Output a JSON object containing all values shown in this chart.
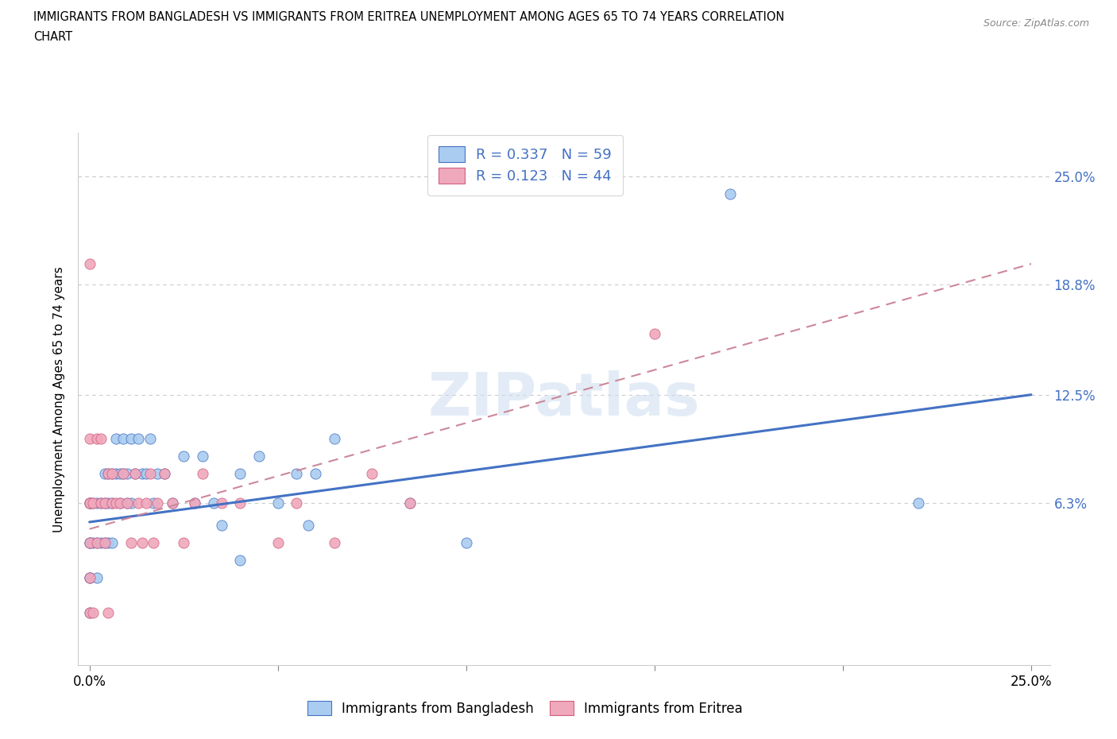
{
  "title_line1": "IMMIGRANTS FROM BANGLADESH VS IMMIGRANTS FROM ERITREA UNEMPLOYMENT AMONG AGES 65 TO 74 YEARS CORRELATION",
  "title_line2": "CHART",
  "source": "Source: ZipAtlas.com",
  "ylabel": "Unemployment Among Ages 65 to 74 years",
  "xlim": [
    -0.003,
    0.255
  ],
  "ylim": [
    -0.03,
    0.275
  ],
  "x_ticks": [
    0.0,
    0.05,
    0.1,
    0.15,
    0.2,
    0.25
  ],
  "x_tick_labels_show": [
    "0.0%",
    "",
    "",
    "",
    "",
    "25.0%"
  ],
  "y_ticks": [
    0.063,
    0.125,
    0.188,
    0.25
  ],
  "y_tick_labels": [
    "6.3%",
    "12.5%",
    "18.8%",
    "25.0%"
  ],
  "watermark": "ZIPatlas",
  "legend_r1": "0.337",
  "legend_n1": "59",
  "legend_r2": "0.123",
  "legend_n2": "44",
  "color_bangladesh": "#aaccf0",
  "color_eritrea": "#f0a8bc",
  "border_bangladesh": "#4472c4",
  "border_eritrea": "#d06080",
  "trendline_bangladesh_x0": 0.0,
  "trendline_bangladesh_y0": 0.052,
  "trendline_bangladesh_x1": 0.25,
  "trendline_bangladesh_y1": 0.125,
  "trendline_eritrea_x0": 0.0,
  "trendline_eritrea_y0": 0.048,
  "trendline_eritrea_x1": 0.25,
  "trendline_eritrea_y1": 0.2,
  "bangladesh_x": [
    0.0,
    0.0,
    0.0,
    0.0,
    0.0,
    0.0,
    0.0,
    0.001,
    0.001,
    0.002,
    0.002,
    0.002,
    0.003,
    0.003,
    0.004,
    0.004,
    0.004,
    0.005,
    0.005,
    0.005,
    0.006,
    0.006,
    0.006,
    0.007,
    0.007,
    0.008,
    0.008,
    0.009,
    0.009,
    0.01,
    0.01,
    0.011,
    0.011,
    0.012,
    0.013,
    0.014,
    0.015,
    0.016,
    0.017,
    0.018,
    0.02,
    0.022,
    0.025,
    0.028,
    0.03,
    0.033,
    0.035,
    0.04,
    0.04,
    0.045,
    0.05,
    0.055,
    0.058,
    0.06,
    0.065,
    0.085,
    0.1,
    0.17,
    0.22
  ],
  "bangladesh_y": [
    0.063,
    0.04,
    0.02,
    0.0,
    0.063,
    0.04,
    0.02,
    0.063,
    0.04,
    0.063,
    0.04,
    0.02,
    0.063,
    0.04,
    0.08,
    0.063,
    0.04,
    0.08,
    0.063,
    0.04,
    0.08,
    0.063,
    0.04,
    0.1,
    0.08,
    0.08,
    0.063,
    0.1,
    0.08,
    0.08,
    0.063,
    0.1,
    0.063,
    0.08,
    0.1,
    0.08,
    0.08,
    0.1,
    0.063,
    0.08,
    0.08,
    0.063,
    0.09,
    0.063,
    0.09,
    0.063,
    0.05,
    0.08,
    0.03,
    0.09,
    0.063,
    0.08,
    0.05,
    0.08,
    0.1,
    0.063,
    0.04,
    0.24,
    0.063
  ],
  "eritrea_x": [
    0.0,
    0.0,
    0.0,
    0.0,
    0.0,
    0.0,
    0.0,
    0.001,
    0.001,
    0.002,
    0.002,
    0.003,
    0.003,
    0.004,
    0.004,
    0.005,
    0.005,
    0.006,
    0.006,
    0.007,
    0.008,
    0.009,
    0.01,
    0.011,
    0.012,
    0.013,
    0.014,
    0.015,
    0.016,
    0.017,
    0.018,
    0.02,
    0.022,
    0.025,
    0.028,
    0.03,
    0.035,
    0.04,
    0.05,
    0.055,
    0.065,
    0.075,
    0.085,
    0.15
  ],
  "eritrea_y": [
    0.063,
    0.04,
    0.02,
    0.0,
    0.1,
    0.2,
    0.063,
    0.0,
    0.063,
    0.04,
    0.1,
    0.063,
    0.1,
    0.063,
    0.04,
    0.08,
    0.0,
    0.063,
    0.08,
    0.063,
    0.063,
    0.08,
    0.063,
    0.04,
    0.08,
    0.063,
    0.04,
    0.063,
    0.08,
    0.04,
    0.063,
    0.08,
    0.063,
    0.04,
    0.063,
    0.08,
    0.063,
    0.063,
    0.04,
    0.063,
    0.04,
    0.08,
    0.063,
    0.16
  ]
}
